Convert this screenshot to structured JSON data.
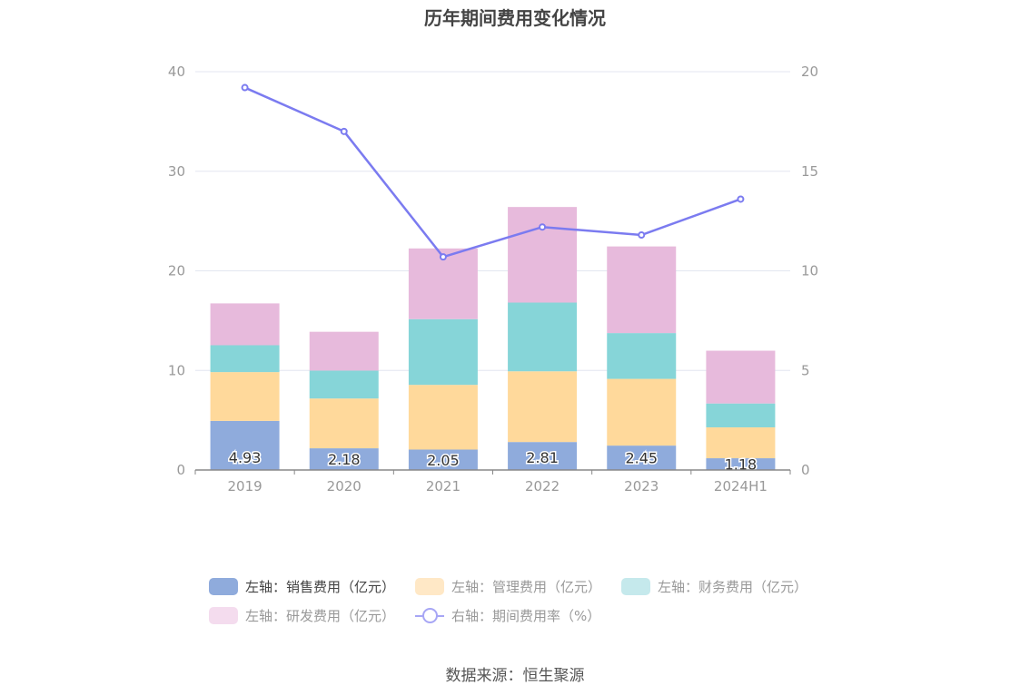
{
  "chart_data": {
    "type": "bar",
    "title": "历年期间费用变化情况",
    "categories": [
      "2019",
      "2020",
      "2021",
      "2022",
      "2023",
      "2024H1"
    ],
    "left_axis": {
      "min": 0,
      "max": 40,
      "ticks": [
        0,
        10,
        20,
        30,
        40
      ],
      "grid": true
    },
    "right_axis": {
      "min": 0,
      "max": 20,
      "ticks": [
        0,
        5,
        10,
        15,
        20
      ]
    },
    "series": [
      {
        "name": "左轴：销售费用（亿元）",
        "type": "bar",
        "stack": "left",
        "color": "#8fabdc",
        "values": [
          4.93,
          2.18,
          2.05,
          2.81,
          2.45,
          1.18
        ],
        "labels": [
          "4.93",
          "2.18",
          "2.05",
          "2.81",
          "2.45",
          "1.18"
        ]
      },
      {
        "name": "左轴：管理费用（亿元）",
        "type": "bar",
        "stack": "left",
        "color": "#ffd99b",
        "values": [
          4.9,
          5.0,
          6.5,
          7.1,
          6.7,
          3.1
        ]
      },
      {
        "name": "左轴：财务费用（亿元）",
        "type": "bar",
        "stack": "left",
        "color": "#86d5d8",
        "values": [
          2.7,
          2.8,
          6.6,
          6.9,
          4.6,
          2.4
        ]
      },
      {
        "name": "左轴：研发费用（亿元）",
        "type": "bar",
        "stack": "left",
        "color": "#e7badc",
        "values": [
          4.2,
          3.9,
          7.1,
          9.6,
          8.7,
          5.3
        ]
      },
      {
        "name": "右轴：期间费用率（%）",
        "type": "line",
        "axis": "right",
        "color": "#7b7bf0",
        "values": [
          19.2,
          17.0,
          10.7,
          12.2,
          11.8,
          13.6
        ]
      }
    ],
    "legend_position": "bottom"
  },
  "legend": {
    "row1": [
      "左轴：销售费用（亿元）",
      "左轴：管理费用（亿元）",
      "左轴：财务费用（亿元）"
    ],
    "row2": [
      "左轴：研发费用（亿元）",
      "右轴：期间费用率（%）"
    ],
    "colors": [
      "#8fabdc",
      "#ffe8c6",
      "#c5e9ec",
      "#f4dcee"
    ]
  },
  "source": "数据来源：恒生聚源"
}
